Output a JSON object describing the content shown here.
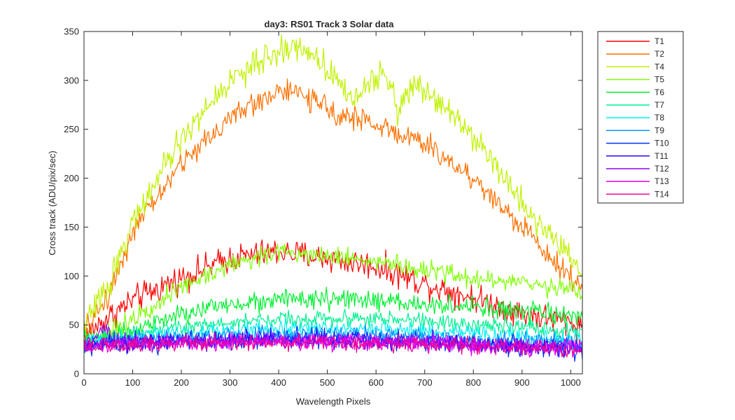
{
  "chart_data": {
    "type": "line",
    "title": "day3: RS01  Track 3 Solar data",
    "xlabel": "Wavelength Pixels",
    "ylabel": "Cross track (ADU/pix/sec)",
    "xlim": [
      0,
      1024
    ],
    "ylim": [
      0,
      350
    ],
    "xticks": [
      0,
      100,
      200,
      300,
      400,
      500,
      600,
      700,
      800,
      900,
      1000
    ],
    "yticks": [
      0,
      50,
      100,
      150,
      200,
      250,
      300,
      350
    ],
    "grid": false,
    "legend_position": "outside-top-right",
    "series": [
      {
        "name": "T1",
        "color": "#ff0000",
        "noise": 7,
        "points": [
          [
            0,
            38
          ],
          [
            50,
            58
          ],
          [
            100,
            75
          ],
          [
            200,
            98
          ],
          [
            300,
            118
          ],
          [
            400,
            125
          ],
          [
            500,
            118
          ],
          [
            600,
            110
          ],
          [
            700,
            92
          ],
          [
            800,
            78
          ],
          [
            900,
            62
          ],
          [
            1000,
            52
          ],
          [
            1024,
            48
          ]
        ]
      },
      {
        "name": "T2",
        "color": "#ff7000",
        "noise": 6,
        "points": [
          [
            0,
            42
          ],
          [
            50,
            80
          ],
          [
            100,
            145
          ],
          [
            200,
            215
          ],
          [
            300,
            262
          ],
          [
            400,
            290
          ],
          [
            450,
            285
          ],
          [
            500,
            270
          ],
          [
            600,
            255
          ],
          [
            700,
            235
          ],
          [
            800,
            200
          ],
          [
            900,
            150
          ],
          [
            950,
            125
          ],
          [
            1000,
            100
          ],
          [
            1024,
            80
          ]
        ]
      },
      {
        "name": "T4",
        "color": "#bff200",
        "noise": 7,
        "points": [
          [
            0,
            50
          ],
          [
            50,
            90
          ],
          [
            100,
            155
          ],
          [
            200,
            240
          ],
          [
            300,
            300
          ],
          [
            400,
            330
          ],
          [
            450,
            335
          ],
          [
            480,
            320
          ],
          [
            520,
            305
          ],
          [
            540,
            285
          ],
          [
            560,
            280
          ],
          [
            580,
            298
          ],
          [
            610,
            305
          ],
          [
            635,
            295
          ],
          [
            645,
            262
          ],
          [
            660,
            285
          ],
          [
            680,
            298
          ],
          [
            720,
            285
          ],
          [
            800,
            245
          ],
          [
            900,
            175
          ],
          [
            960,
            140
          ],
          [
            1000,
            120
          ],
          [
            1024,
            102
          ]
        ]
      },
      {
        "name": "T5",
        "color": "#7fff00",
        "noise": 5,
        "points": [
          [
            0,
            35
          ],
          [
            50,
            40
          ],
          [
            100,
            58
          ],
          [
            200,
            88
          ],
          [
            300,
            112
          ],
          [
            400,
            125
          ],
          [
            500,
            122
          ],
          [
            600,
            115
          ],
          [
            700,
            105
          ],
          [
            800,
            98
          ],
          [
            900,
            92
          ],
          [
            1000,
            88
          ],
          [
            1024,
            82
          ]
        ]
      },
      {
        "name": "T6",
        "color": "#00f030",
        "noise": 5,
        "points": [
          [
            0,
            35
          ],
          [
            50,
            38
          ],
          [
            100,
            45
          ],
          [
            200,
            60
          ],
          [
            300,
            72
          ],
          [
            400,
            76
          ],
          [
            500,
            76
          ],
          [
            600,
            74
          ],
          [
            700,
            71
          ],
          [
            800,
            68
          ],
          [
            900,
            63
          ],
          [
            1000,
            60
          ],
          [
            1024,
            58
          ]
        ]
      },
      {
        "name": "T7",
        "color": "#00f090",
        "noise": 4,
        "points": [
          [
            0,
            33
          ],
          [
            50,
            36
          ],
          [
            100,
            42
          ],
          [
            200,
            48
          ],
          [
            300,
            52
          ],
          [
            400,
            56
          ],
          [
            500,
            57
          ],
          [
            600,
            56
          ],
          [
            700,
            54
          ],
          [
            800,
            50
          ],
          [
            900,
            47
          ],
          [
            1000,
            44
          ],
          [
            1024,
            42
          ]
        ]
      },
      {
        "name": "T8",
        "color": "#00f0f0",
        "noise": 4,
        "points": [
          [
            0,
            30
          ],
          [
            50,
            34
          ],
          [
            100,
            38
          ],
          [
            200,
            42
          ],
          [
            300,
            44
          ],
          [
            400,
            46
          ],
          [
            500,
            47
          ],
          [
            600,
            46
          ],
          [
            700,
            44
          ],
          [
            800,
            41
          ],
          [
            900,
            38
          ],
          [
            1000,
            36
          ],
          [
            1024,
            34
          ]
        ]
      },
      {
        "name": "T9",
        "color": "#0090ff",
        "noise": 4,
        "points": [
          [
            0,
            30
          ],
          [
            50,
            33
          ],
          [
            100,
            35
          ],
          [
            200,
            38
          ],
          [
            300,
            39
          ],
          [
            400,
            40
          ],
          [
            500,
            41
          ],
          [
            600,
            40
          ],
          [
            700,
            38
          ],
          [
            800,
            36
          ],
          [
            900,
            34
          ],
          [
            1000,
            32
          ],
          [
            1024,
            30
          ]
        ]
      },
      {
        "name": "T10",
        "color": "#0030ff",
        "noise": 5,
        "points": [
          [
            0,
            28
          ],
          [
            50,
            30
          ],
          [
            100,
            32
          ],
          [
            200,
            34
          ],
          [
            300,
            35
          ],
          [
            400,
            36
          ],
          [
            500,
            36
          ],
          [
            600,
            35
          ],
          [
            700,
            33
          ],
          [
            800,
            30
          ],
          [
            900,
            28
          ],
          [
            1000,
            26
          ],
          [
            1024,
            25
          ]
        ]
      },
      {
        "name": "T11",
        "color": "#3000ff",
        "noise": 4,
        "points": [
          [
            0,
            28
          ],
          [
            50,
            30
          ],
          [
            100,
            31
          ],
          [
            200,
            33
          ],
          [
            300,
            34
          ],
          [
            400,
            35
          ],
          [
            500,
            35
          ],
          [
            600,
            34
          ],
          [
            700,
            32
          ],
          [
            800,
            30
          ],
          [
            900,
            28
          ],
          [
            1000,
            27
          ],
          [
            1024,
            26
          ]
        ]
      },
      {
        "name": "T12",
        "color": "#9000ff",
        "noise": 4,
        "points": [
          [
            0,
            28
          ],
          [
            20,
            30
          ],
          [
            40,
            48
          ],
          [
            60,
            34
          ],
          [
            100,
            31
          ],
          [
            200,
            33
          ],
          [
            300,
            34
          ],
          [
            400,
            34
          ],
          [
            500,
            34
          ],
          [
            600,
            33
          ],
          [
            700,
            32
          ],
          [
            720,
            38
          ],
          [
            740,
            32
          ],
          [
            800,
            30
          ],
          [
            900,
            28
          ],
          [
            1000,
            27
          ],
          [
            1024,
            26
          ]
        ]
      },
      {
        "name": "T13",
        "color": "#f000f0",
        "noise": 4,
        "points": [
          [
            0,
            28
          ],
          [
            50,
            29
          ],
          [
            100,
            30
          ],
          [
            200,
            32
          ],
          [
            300,
            33
          ],
          [
            400,
            33
          ],
          [
            500,
            33
          ],
          [
            600,
            32
          ],
          [
            700,
            31
          ],
          [
            800,
            29
          ],
          [
            900,
            27
          ],
          [
            1000,
            26
          ],
          [
            1024,
            25
          ]
        ]
      },
      {
        "name": "T14",
        "color": "#f00090",
        "noise": 4,
        "points": [
          [
            0,
            27
          ],
          [
            50,
            28
          ],
          [
            100,
            29
          ],
          [
            200,
            31
          ],
          [
            300,
            32
          ],
          [
            400,
            32
          ],
          [
            500,
            32
          ],
          [
            600,
            31
          ],
          [
            700,
            30
          ],
          [
            800,
            28
          ],
          [
            900,
            26
          ],
          [
            1000,
            25
          ],
          [
            1024,
            24
          ]
        ]
      }
    ]
  }
}
